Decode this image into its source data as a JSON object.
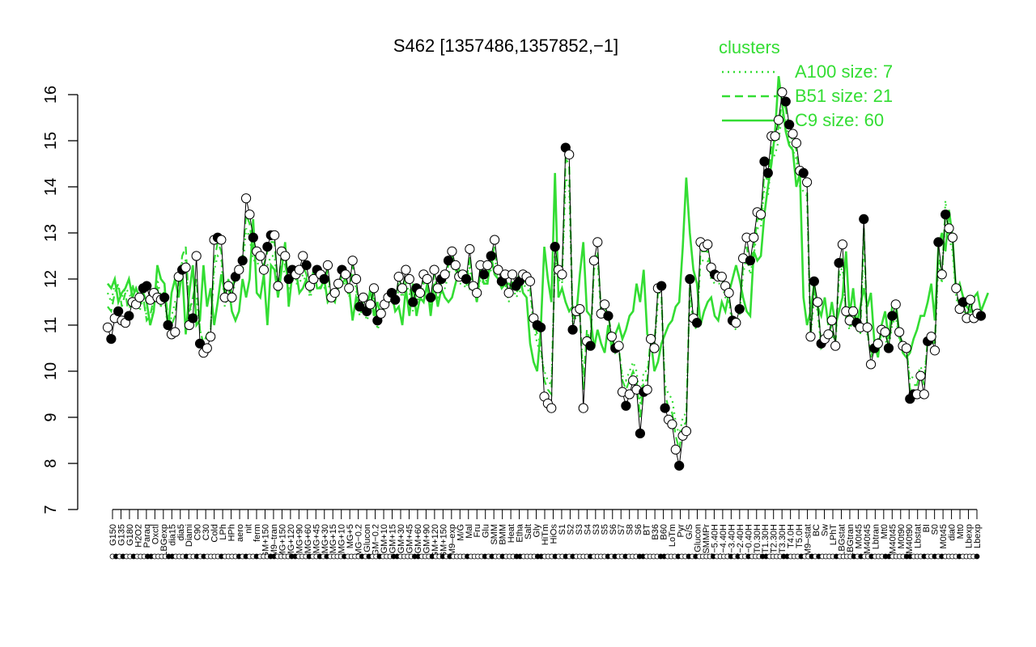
{
  "chart_data": {
    "type": "line",
    "title": "S462 [1357486,1357852,−1]",
    "xlabel": "",
    "ylabel": "",
    "ylim": [
      7,
      16
    ],
    "yticks": [
      7,
      8,
      9,
      10,
      11,
      12,
      13,
      14,
      15,
      16
    ],
    "grid": false,
    "legend": {
      "placement": "top-right",
      "title": "clusters",
      "color": "#33dd33",
      "entries": [
        {
          "label": "A100 size: 7",
          "style": "dotted"
        },
        {
          "label": "B51 size: 21",
          "style": "dashed"
        },
        {
          "label": "C9 size: 60",
          "style": "solid"
        }
      ]
    },
    "x_tick_labels": [
      "G150",
      "G135",
      "G180",
      "H2O2",
      "Paraq",
      "Oxctl",
      "LBGexp",
      "dia15",
      "dia5",
      "Diami",
      "C90",
      "C30",
      "Cold",
      "LPh",
      "HPh",
      "aero",
      "nit",
      "ferm",
      "GM+150",
      "M9–tran",
      "MG+150",
      "MG+120",
      "MG+90",
      "MG+60",
      "MG+45",
      "MG+30",
      "MG+15",
      "MG+10",
      "MG+5",
      "MG−0.2",
      "Glucon",
      "GM−0.2",
      "GM+10",
      "GM+15",
      "GM+30",
      "GM+45",
      "GM+60",
      "GM+90",
      "GM+120",
      "GM+150",
      "M9–exp",
      "M/G",
      "Mal",
      "Fru",
      "Glu",
      "SMM",
      "BMM",
      "Heat",
      "Etha",
      "Salt",
      "Gly",
      "HiTm",
      "HiOs",
      "S1",
      "S2",
      "S3",
      "S4",
      "S3",
      "S5",
      "S6",
      "S7",
      "S8",
      "S6",
      "BT",
      "B36",
      "B60",
      "LoTm",
      "Pyr",
      "G/S",
      "Glucon",
      "SMMPr",
      "T−5.40H",
      "T−4.40H",
      "T−3.40H",
      "T−2.40H",
      "T−0.40H",
      "T0.30H",
      "T1.30H",
      "T2.30H",
      "T3.30H",
      "T4.0H",
      "T5.0H",
      "M9–stat",
      "BC",
      "Sw",
      "LPhT",
      "LBGstat",
      "LBGtran",
      "M0t45",
      "M40t45",
      "Lbtran",
      "Mt0",
      "M40t45",
      "M0t90",
      "M40t90",
      "Lbstat",
      "BI",
      "S0",
      "M0t45",
      "dia0",
      "Mt0",
      "Lbexp",
      "Lbexp"
    ],
    "series": [
      {
        "name": "",
        "style": "points",
        "values": [
          10.95,
          10.7,
          11.15,
          11.3,
          11.1,
          11.05,
          11.2,
          11.5,
          11.45,
          11.6,
          11.8,
          11.85,
          11.55,
          11.7,
          11.6,
          11.55,
          11.6,
          11.0,
          10.8,
          10.85,
          12.05,
          12.2,
          12.25,
          11.0,
          11.15,
          12.5,
          10.6,
          10.4,
          10.5,
          10.75,
          12.85,
          12.9,
          12.85,
          11.6,
          11.85,
          11.6,
          12.05,
          12.2,
          12.4,
          13.75,
          13.4,
          12.9,
          12.6,
          12.5,
          12.2,
          12.7,
          12.95,
          12.95,
          11.85,
          12.6,
          12.5,
          12.0,
          12.2,
          12.1,
          12.2,
          12.5,
          12.3,
          11.85,
          12.0,
          12.2,
          12.1,
          12.0,
          12.3,
          11.6,
          11.7,
          11.9,
          12.2,
          12.1,
          11.8,
          12.4,
          12.0,
          11.4,
          11.6,
          11.3,
          11.45,
          11.8,
          11.1,
          11.25,
          11.45,
          11.6,
          11.7,
          11.55,
          12.05,
          11.8,
          12.2,
          12.0,
          11.5,
          11.8,
          11.7,
          12.1,
          12.0,
          11.6,
          12.2,
          11.8,
          12.0,
          12.1,
          12.4,
          12.6,
          12.3,
          12.05,
          12.1,
          12.0,
          12.65,
          11.85,
          11.7,
          12.3,
          12.1,
          12.3,
          12.5,
          12.85,
          12.2,
          11.95,
          12.1,
          11.7,
          12.1,
          11.85,
          11.95,
          12.1,
          12.05,
          11.95,
          11.15,
          11.0,
          10.95,
          9.45,
          9.3,
          9.2,
          12.7,
          12.2,
          12.1,
          14.85,
          14.7,
          10.9,
          11.3,
          11.35,
          9.2,
          10.65,
          10.55,
          12.4,
          12.8,
          11.25,
          11.45,
          11.2,
          10.75,
          10.5,
          10.55,
          9.55,
          9.25,
          9.5,
          9.8,
          9.6,
          8.65,
          9.55,
          9.6,
          10.7,
          10.5,
          11.8,
          11.85,
          9.2,
          8.95,
          8.85,
          8.3,
          7.95,
          8.6,
          8.7,
          12.0,
          11.15,
          11.05,
          12.8,
          12.7,
          12.75,
          12.25,
          12.1,
          12.05,
          12.05,
          11.85,
          11.7,
          11.1,
          11.05,
          11.35,
          12.45,
          12.9,
          12.4,
          12.9,
          13.45,
          13.4,
          14.55,
          14.3,
          15.1,
          15.1,
          15.45,
          16.05,
          15.85,
          15.35,
          15.15,
          14.95,
          14.35,
          14.3,
          14.1,
          10.75,
          11.95,
          11.5,
          10.6,
          10.7,
          10.8,
          11.1,
          10.55,
          12.35,
          12.75,
          11.3,
          11.1,
          11.3,
          11.05,
          10.95,
          13.3,
          10.95,
          10.15,
          10.5,
          10.6,
          10.9,
          10.85,
          10.5,
          11.2,
          11.45,
          10.85,
          10.55,
          10.5,
          9.4,
          9.5,
          9.5,
          9.9,
          9.5,
          10.65,
          10.75,
          10.45,
          12.8,
          12.1,
          13.4,
          13.1,
          12.9,
          11.8,
          11.35,
          11.5,
          11.15,
          11.55,
          11.15,
          11.25,
          11.2
        ]
      },
      {
        "name": "C9 size: 60",
        "style": "solid",
        "values": [
          11.9,
          11.8,
          12.0,
          11.5,
          11.7,
          11.8,
          12.0,
          11.6,
          11.8,
          11.6,
          11.7,
          11.5,
          11.0,
          11.3,
          12.3,
          12.0,
          11.9,
          10.9,
          11.7,
          12.0,
          11.6,
          12.2,
          10.8,
          11.7,
          12.3,
          11.0,
          11.1,
          12.3,
          11.4,
          11.8,
          11.0,
          11.5,
          12.1,
          11.7,
          11.9,
          11.3,
          11.1,
          11.3,
          12.0,
          11.6,
          12.0,
          13.3,
          11.7,
          11.6,
          12.1,
          11.0,
          12.3,
          12.2,
          11.6,
          12.2,
          12.8,
          11.4,
          12.1,
          12.2,
          11.7,
          11.8,
          12.0,
          11.7,
          12.2,
          11.8,
          11.8,
          12.0,
          11.5,
          11.6,
          11.5,
          11.9,
          11.9,
          12.0,
          11.8,
          11.1,
          11.6,
          11.4,
          11.4,
          11.3,
          11.8,
          11.2,
          11.5,
          11.2,
          11.4,
          11.6,
          11.7,
          11.3,
          11.4,
          11.0,
          11.8,
          11.2,
          11.9,
          11.2,
          11.6,
          11.5,
          11.9,
          11.2,
          11.9,
          11.4,
          11.8,
          11.6,
          11.5,
          11.6,
          11.9,
          12.2,
          12.0,
          12.1,
          11.8,
          11.9,
          11.5,
          12.2,
          11.9,
          11.9,
          12.5,
          12.1,
          12.0,
          11.8,
          11.9,
          11.9,
          11.8,
          11.9,
          12.1,
          11.7,
          11.6,
          10.6,
          10.2,
          10.0,
          10.9,
          12.7,
          12.0,
          11.5,
          14.3,
          11.6,
          11.8,
          11.5,
          11.3,
          11.4,
          11.2,
          12.1,
          12.8,
          11.3,
          11.2,
          10.5,
          10.9,
          10.6,
          10.4,
          11.0,
          10.5,
          10.8,
          11.0,
          10.7,
          10.9,
          11.2,
          11.3,
          11.9,
          11.5,
          12.2,
          10.8,
          10.7,
          10.0,
          10.2,
          10.6,
          10.8,
          11.0,
          11.1,
          11.4,
          11.5,
          12.7,
          14.2,
          13.0,
          12.2,
          11.9,
          11.0,
          11.3,
          11.5,
          11.6,
          11.2,
          11.1,
          11.5,
          11.3,
          11.7,
          12.0,
          12.3,
          12.0,
          11.6,
          11.3,
          11.2,
          12.6,
          12.4,
          12.5,
          13.4,
          14.0,
          14.5,
          15.2,
          16.4,
          15.8,
          15.2,
          14.9,
          14.8,
          14.0,
          14.3,
          11.6,
          11.0,
          11.3,
          11.9,
          11.4,
          11.2,
          11.6,
          11.0,
          11.5,
          11.0,
          11.3,
          11.6,
          12.6,
          11.2,
          11.8,
          11.0,
          11.4,
          11.8,
          11.4,
          11.7,
          10.6,
          10.3,
          11.0,
          11.3,
          10.7,
          11.4,
          11.5,
          10.8,
          10.4,
          10.3,
          10.4,
          10.7,
          10.9,
          11.2,
          11.2,
          11.5,
          11.9,
          11.1,
          12.7,
          13.0,
          12.6,
          13.5,
          12.9,
          11.7,
          11.9,
          11.6,
          11.4,
          11.3,
          11.6,
          11.7,
          11.3,
          11.5,
          11.7
        ]
      },
      {
        "name": "B51 size: 21",
        "style": "dashed",
        "values": [
          11.4,
          11.3,
          11.7,
          11.9,
          11.4,
          11.7,
          11.2,
          11.9,
          11.5,
          11.4,
          11.6,
          11.1,
          11.2,
          11.6,
          11.8,
          11.4,
          11.8,
          11.2,
          11.0,
          11.2,
          11.9,
          12.5,
          12.7,
          11.3,
          11.6,
          12.0,
          10.9,
          10.6,
          10.8,
          10.9,
          12.4,
          12.8,
          12.6,
          11.6,
          12.0,
          11.7,
          12.2,
          12.4,
          12.5,
          13.4,
          13.2,
          12.6,
          12.6,
          12.4,
          12.3,
          12.6,
          12.8,
          12.8,
          11.8,
          12.5,
          12.3,
          11.9,
          12.2,
          12.0,
          12.1,
          12.3,
          12.1,
          11.7,
          11.9,
          12.1,
          12.0,
          11.9,
          12.2,
          11.6,
          11.7,
          11.8,
          12.1,
          12.0,
          11.7,
          12.3,
          11.9,
          11.3,
          11.5,
          11.2,
          11.4,
          11.7,
          11.0,
          11.2,
          11.4,
          11.6,
          11.6,
          11.5,
          12.0,
          11.8,
          12.1,
          11.9,
          11.4,
          11.7,
          11.6,
          12.0,
          11.9,
          11.5,
          12.1,
          11.7,
          11.9,
          12.0,
          12.3,
          12.5,
          12.2,
          12.0,
          12.0,
          11.9,
          12.5,
          11.8,
          11.6,
          12.2,
          12.0,
          12.2,
          12.4,
          12.7,
          12.1,
          11.9,
          12.0,
          11.6,
          12.0,
          11.7,
          11.8,
          12.0,
          11.9,
          11.8,
          11.1,
          10.8,
          10.6,
          9.8,
          9.6,
          9.5,
          12.5,
          12.1,
          12.0,
          14.6,
          14.5,
          11.1,
          11.3,
          11.3,
          9.6,
          10.9,
          10.6,
          12.3,
          12.6,
          11.3,
          11.4,
          11.2,
          10.8,
          10.5,
          10.5,
          9.8,
          9.6,
          9.8,
          10.0,
          9.8,
          9.0,
          9.8,
          9.8,
          10.8,
          10.6,
          11.7,
          11.7,
          9.5,
          9.2,
          9.1,
          8.6,
          8.3,
          8.8,
          8.9,
          11.9,
          11.1,
          11.0,
          12.6,
          12.6,
          12.6,
          12.2,
          12.0,
          12.0,
          12.0,
          11.8,
          11.6,
          11.1,
          11.0,
          11.3,
          12.3,
          12.7,
          12.3,
          12.7,
          13.3,
          13.3,
          14.3,
          14.1,
          14.9,
          15.0,
          15.3,
          15.9,
          15.7,
          15.2,
          15.0,
          14.8,
          14.2,
          14.1,
          14.0,
          10.8,
          11.8,
          11.4,
          10.6,
          10.7,
          10.8,
          11.0,
          10.6,
          12.2,
          12.5,
          11.2,
          11.0,
          11.2,
          11.0,
          10.9,
          13.1,
          10.9,
          10.3,
          10.6,
          10.7,
          10.9,
          10.8,
          10.6,
          11.1,
          11.3,
          10.8,
          10.6,
          10.6,
          9.6,
          9.7,
          9.7,
          10.0,
          9.7,
          10.7,
          10.8,
          10.6,
          12.6,
          12.1,
          13.5,
          13.0,
          12.8,
          11.7,
          11.4,
          11.5,
          11.2,
          11.5,
          11.2,
          11.3,
          11.3
        ]
      },
      {
        "name": "A100 size: 7",
        "style": "dotted",
        "values": [
          11.7,
          11.5,
          11.9,
          11.8,
          11.6,
          11.8,
          11.7,
          11.5,
          11.5,
          11.3,
          11.6,
          11.2,
          11.0,
          11.4,
          12.0,
          11.6,
          11.7,
          10.8,
          11.2,
          11.5,
          11.7,
          12.4,
          12.4,
          11.2,
          11.6,
          11.6,
          10.9,
          10.6,
          10.8,
          10.9,
          12.2,
          12.5,
          12.4,
          11.4,
          11.7,
          11.5,
          12.0,
          12.1,
          12.2,
          13.1,
          12.9,
          12.4,
          12.4,
          12.2,
          12.1,
          12.3,
          12.5,
          12.5,
          11.7,
          12.3,
          12.1,
          11.8,
          12.0,
          11.9,
          11.9,
          12.1,
          11.9,
          11.6,
          11.8,
          11.9,
          11.8,
          11.8,
          12.0,
          11.5,
          11.6,
          11.7,
          11.9,
          11.9,
          11.6,
          12.1,
          11.8,
          11.2,
          11.4,
          11.1,
          11.3,
          11.6,
          10.9,
          11.1,
          11.3,
          11.5,
          11.5,
          11.4,
          11.8,
          11.6,
          11.9,
          11.7,
          11.3,
          11.6,
          11.5,
          11.9,
          11.8,
          11.4,
          11.9,
          11.6,
          11.7,
          11.8,
          12.1,
          12.3,
          12.1,
          11.9,
          11.9,
          11.8,
          12.3,
          11.7,
          11.5,
          12.0,
          11.9,
          12.0,
          12.2,
          12.5,
          12.0,
          11.8,
          11.9,
          11.5,
          11.9,
          11.6,
          11.7,
          11.9,
          11.8,
          11.7,
          11.0,
          10.6,
          10.4,
          10.0,
          9.8,
          9.7,
          12.4,
          12.0,
          11.9,
          14.2,
          14.0,
          11.0,
          11.2,
          11.2,
          9.9,
          10.7,
          10.5,
          12.2,
          12.4,
          11.2,
          11.3,
          11.1,
          10.7,
          10.4,
          10.5,
          9.9,
          9.8,
          10.0,
          10.2,
          10.0,
          9.3,
          10.0,
          10.0,
          10.6,
          10.5,
          11.5,
          11.5,
          9.7,
          9.5,
          9.4,
          8.9,
          8.6,
          9.0,
          9.1,
          11.7,
          11.0,
          10.9,
          12.4,
          12.4,
          12.4,
          12.0,
          11.9,
          11.9,
          11.9,
          11.6,
          11.5,
          11.0,
          10.9,
          11.2,
          12.1,
          12.5,
          12.1,
          12.5,
          13.1,
          13.1,
          14.0,
          13.8,
          14.6,
          14.7,
          15.0,
          15.6,
          15.4,
          15.0,
          14.8,
          14.6,
          14.0,
          13.9,
          13.8,
          10.7,
          11.6,
          11.3,
          10.5,
          10.6,
          10.7,
          10.9,
          10.5,
          12.0,
          12.3,
          11.1,
          10.9,
          11.1,
          10.9,
          10.8,
          12.9,
          10.8,
          10.4,
          10.6,
          10.6,
          10.8,
          10.7,
          10.5,
          11.0,
          11.2,
          10.7,
          10.5,
          10.5,
          9.8,
          9.9,
          9.9,
          10.1,
          9.9,
          10.6,
          10.7,
          10.5,
          12.4,
          11.9,
          13.7,
          12.9,
          12.6,
          11.6,
          11.3,
          11.4,
          11.1,
          11.4,
          11.1,
          11.2,
          11.2
        ]
      }
    ]
  }
}
